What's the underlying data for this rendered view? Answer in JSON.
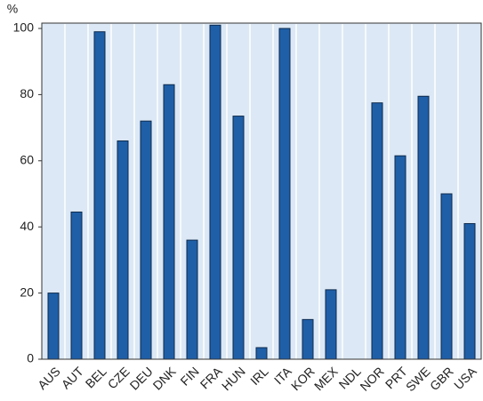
{
  "chart_data": {
    "type": "bar",
    "y_label": "%",
    "categories": [
      "AUS",
      "AUT",
      "BEL",
      "CZE",
      "DEU",
      "DNK",
      "FIN",
      "FRA",
      "HUN",
      "IRL",
      "ITA",
      "KOR",
      "MEX",
      "NDL",
      "NOR",
      "PRT",
      "SWE",
      "GBR",
      "USA"
    ],
    "values": [
      20,
      44.5,
      99,
      66,
      72,
      83,
      36,
      101,
      73.5,
      3.5,
      100,
      12,
      21,
      null,
      77.5,
      61.5,
      79.5,
      50,
      41
    ],
    "color": "#1f5fa8",
    "ylim": [
      0,
      100
    ],
    "yticks": [
      0,
      20,
      40,
      60,
      80,
      100
    ]
  }
}
